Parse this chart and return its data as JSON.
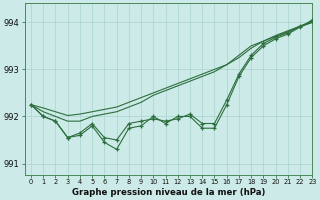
{
  "title": "Graphe pression niveau de la mer (hPa)",
  "background_color": "#cceae7",
  "grid_color": "#aad4d0",
  "line_color": "#2d6e3e",
  "xlim": [
    -0.5,
    23
  ],
  "ylim": [
    990.75,
    994.4
  ],
  "yticks": [
    991,
    992,
    993,
    994
  ],
  "xtick_labels": [
    "0",
    "1",
    "2",
    "3",
    "4",
    "5",
    "6",
    "7",
    "8",
    "9",
    "10",
    "11",
    "12",
    "13",
    "14",
    "15",
    "16",
    "17",
    "18",
    "19",
    "20",
    "21",
    "22",
    "23"
  ],
  "smooth_line": [
    992.25,
    992.18,
    992.1,
    992.02,
    992.05,
    992.1,
    992.15,
    992.2,
    992.3,
    992.4,
    992.5,
    992.6,
    992.7,
    992.8,
    992.9,
    993.0,
    993.1,
    993.3,
    993.5,
    993.6,
    993.7,
    993.8,
    993.9,
    994.0
  ],
  "smooth_line2": [
    992.25,
    992.1,
    992.0,
    991.9,
    991.9,
    992.0,
    992.05,
    992.1,
    992.2,
    992.3,
    992.45,
    992.55,
    992.65,
    992.75,
    992.85,
    992.95,
    993.1,
    993.25,
    993.45,
    993.6,
    993.72,
    993.82,
    993.92,
    994.0
  ],
  "noisy_line": [
    992.25,
    992.0,
    991.9,
    991.55,
    991.6,
    991.8,
    991.45,
    991.3,
    991.75,
    991.8,
    992.0,
    991.85,
    992.0,
    992.0,
    991.75,
    991.75,
    992.25,
    992.85,
    993.25,
    993.5,
    993.65,
    993.75,
    993.9,
    994.05
  ],
  "noisy_line2": [
    992.25,
    992.0,
    991.9,
    991.55,
    991.65,
    991.85,
    991.55,
    991.5,
    991.85,
    991.9,
    991.95,
    991.9,
    991.95,
    992.05,
    991.85,
    991.85,
    992.35,
    992.9,
    993.3,
    993.55,
    993.68,
    993.78,
    993.92,
    994.02
  ]
}
